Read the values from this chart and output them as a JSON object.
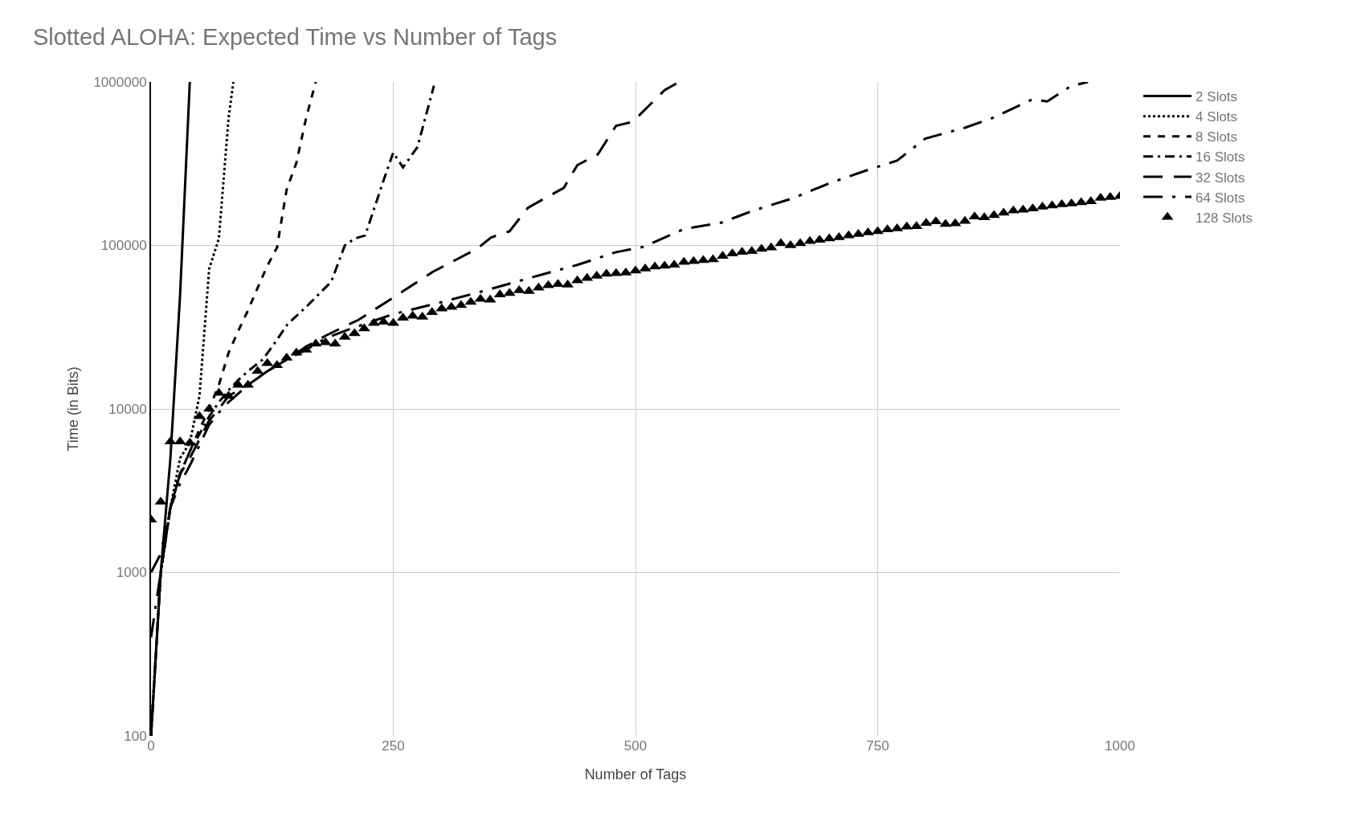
{
  "chart_data": {
    "type": "line",
    "title": "Slotted ALOHA: Expected Time vs Number of Tags",
    "xlabel": "Number of Tags",
    "ylabel": "Time (in Bits)",
    "log": "y",
    "grid": true,
    "legend": "top right",
    "xlim": [
      0,
      1000
    ],
    "xticks": [
      0,
      250,
      500,
      750,
      1000
    ],
    "ylim": [
      100,
      1000000
    ],
    "yticks": [
      100,
      1000,
      10000,
      100000,
      1000000
    ],
    "series": [
      {
        "name": "2 Slots",
        "color": "#000000",
        "line_style": "solid",
        "x": [
          0,
          10,
          20,
          30,
          40
        ],
        "values": [
          100,
          1000,
          5000,
          50000,
          1000000
        ]
      },
      {
        "name": "4 Slots",
        "color": "#000000",
        "line_style": "dotted",
        "x": [
          0,
          10,
          20,
          30,
          40,
          50,
          60,
          70,
          80,
          85
        ],
        "values": [
          100,
          1000,
          2500,
          5000,
          6200,
          12000,
          72000,
          110000,
          600000,
          1000000
        ]
      },
      {
        "name": "8 Slots",
        "color": "#000000",
        "line_style": "dashed",
        "x": [
          0,
          10,
          20,
          30,
          40,
          50,
          60,
          70,
          80,
          90,
          100,
          110,
          120,
          130,
          140,
          150,
          160,
          170
        ],
        "values": [
          100,
          1000,
          2500,
          4000,
          5500,
          7500,
          10000,
          14000,
          22000,
          30000,
          40000,
          55000,
          75000,
          97000,
          220000,
          320000,
          600000,
          1000000
        ]
      },
      {
        "name": "16 Slots",
        "color": "#000000",
        "line_style": "dashdot",
        "x": [
          0,
          10,
          20,
          30,
          40,
          50,
          60,
          70,
          80,
          90,
          100,
          115,
          125,
          141,
          160,
          186,
          200,
          210,
          221,
          240,
          250,
          260,
          275,
          292
        ],
        "values": [
          100,
          1000,
          2500,
          4000,
          5500,
          7000,
          9000,
          11000,
          13000,
          15000,
          17000,
          20000,
          24000,
          33000,
          42000,
          60000,
          100000,
          110000,
          115000,
          250000,
          370000,
          300000,
          400000,
          950000
        ]
      },
      {
        "name": "32 Slots",
        "color": "#000000",
        "line_style": "longdash",
        "x": [
          0,
          10,
          20,
          30,
          40,
          50,
          60,
          70,
          80,
          100,
          120,
          140,
          160,
          180,
          200,
          214,
          250,
          291,
          336,
          351,
          370,
          389,
          426,
          440,
          461,
          480,
          497,
          530,
          545
        ],
        "values": [
          1000,
          1300,
          2500,
          4000,
          5000,
          6500,
          8500,
          10000,
          12000,
          14000,
          17000,
          20000,
          24000,
          28000,
          32000,
          35000,
          48000,
          69000,
          95000,
          112000,
          122000,
          170000,
          225000,
          310000,
          360000,
          540000,
          570000,
          890000,
          1000000
        ]
      },
      {
        "name": "64 Slots",
        "color": "#000000",
        "line_style": "longdashdot",
        "x": [
          0,
          10,
          20,
          30,
          40,
          50,
          60,
          70,
          80,
          100,
          120,
          140,
          160,
          180,
          200,
          250,
          300,
          350,
          402,
          440,
          480,
          508,
          550,
          589,
          620,
          663,
          700,
          740,
          770,
          799,
          840,
          868,
          909,
          925,
          949,
          967
        ],
        "values": [
          400,
          1000,
          2500,
          3500,
          4500,
          6000,
          8000,
          9500,
          11000,
          14000,
          17000,
          20000,
          23000,
          27000,
          30000,
          38000,
          45000,
          54000,
          66000,
          76000,
          91000,
          98000,
          126000,
          138000,
          162000,
          195000,
          240000,
          290000,
          330000,
          450000,
          525000,
          600000,
          780000,
          760000,
          940000,
          1000000
        ]
      },
      {
        "name": "128 Slots",
        "type": "scatter",
        "color": "#000000",
        "marker": "triangle",
        "x": [
          0,
          10,
          20,
          30,
          40,
          50,
          60,
          70,
          80,
          90,
          100,
          110,
          120,
          130,
          140,
          150,
          160,
          170,
          180,
          190,
          200,
          210,
          220,
          230,
          240,
          250,
          260,
          270,
          280,
          290,
          300,
          310,
          320,
          330,
          340,
          350,
          360,
          370,
          380,
          390,
          400,
          410,
          420,
          430,
          440,
          450,
          460,
          470,
          480,
          490,
          500,
          510,
          520,
          530,
          540,
          550,
          560,
          570,
          580,
          590,
          600,
          610,
          620,
          630,
          640,
          650,
          660,
          670,
          680,
          690,
          700,
          710,
          720,
          730,
          740,
          750,
          760,
          770,
          780,
          790,
          800,
          810,
          820,
          830,
          840,
          850,
          860,
          870,
          880,
          890,
          900,
          910,
          920,
          930,
          940,
          950,
          960,
          970,
          980,
          990,
          1000
        ],
        "values": [
          2100,
          2700,
          6300,
          6300,
          6200,
          9000,
          10000,
          12500,
          12000,
          14000,
          14000,
          17000,
          19000,
          18500,
          20500,
          22000,
          23000,
          25000,
          25500,
          25000,
          27500,
          29000,
          31000,
          33500,
          34000,
          33500,
          36000,
          37000,
          36500,
          39000,
          41000,
          42000,
          43000,
          45000,
          47000,
          46500,
          50000,
          51000,
          53000,
          52500,
          55000,
          57000,
          58000,
          57500,
          61000,
          63000,
          65000,
          67000,
          67500,
          68000,
          70000,
          72000,
          74000,
          75000,
          76000,
          79000,
          80000,
          81000,
          82000,
          86000,
          89000,
          91000,
          92000,
          95000,
          97000,
          103000,
          100000,
          103000,
          106000,
          108000,
          110000,
          112000,
          115000,
          117000,
          120000,
          122000,
          125000,
          127000,
          130000,
          131000,
          137000,
          140000,
          135000,
          136000,
          141000,
          150000,
          148000,
          153000,
          158000,
          163000,
          165000,
          168000,
          172000,
          175000,
          178000,
          180000,
          183000,
          186000,
          195000,
          197000,
          200000
        ]
      }
    ]
  }
}
